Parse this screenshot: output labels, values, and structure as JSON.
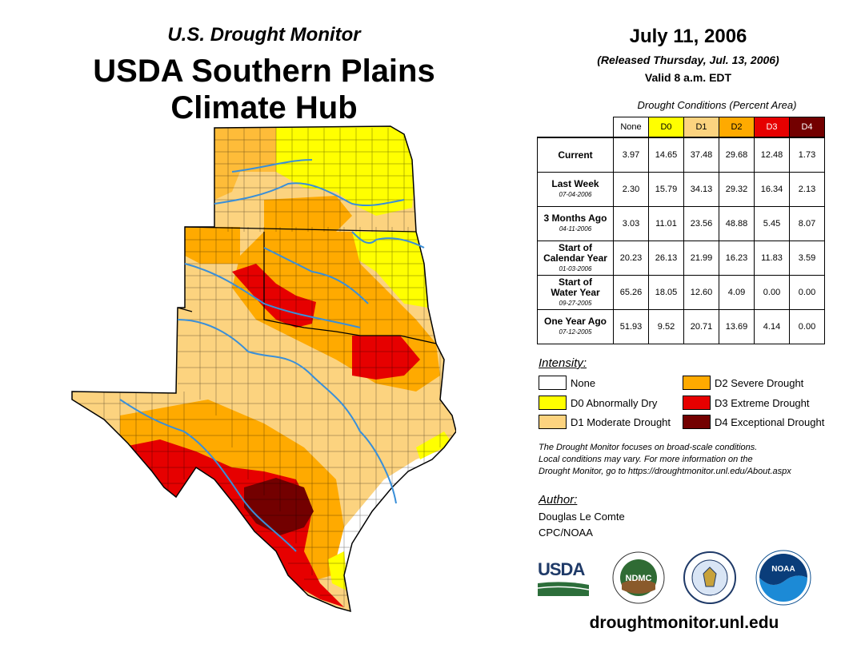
{
  "header": {
    "subtitle": "U.S. Drought Monitor",
    "title_line1": "USDA Southern Plains",
    "title_line2": "Climate Hub"
  },
  "date": {
    "main": "July 11, 2006",
    "released": "(Released Thursday, Jul. 13, 2006)",
    "valid": "Valid 8 a.m. EDT"
  },
  "conditions": {
    "caption": "Drought Conditions (Percent Area)",
    "columns": [
      "None",
      "D0",
      "D1",
      "D2",
      "D3",
      "D4"
    ],
    "rows": [
      {
        "label1": "Current",
        "label2": "",
        "date": "",
        "values": [
          "3.97",
          "14.65",
          "37.48",
          "29.68",
          "12.48",
          "1.73"
        ]
      },
      {
        "label1": "Last Week",
        "label2": "",
        "date": "07-04-2006",
        "values": [
          "2.30",
          "15.79",
          "34.13",
          "29.32",
          "16.34",
          "2.13"
        ]
      },
      {
        "label1": "3 Months Ago",
        "label2": "",
        "date": "04-11-2006",
        "values": [
          "3.03",
          "11.01",
          "23.56",
          "48.88",
          "5.45",
          "8.07"
        ]
      },
      {
        "label1": "Start of",
        "label2": "Calendar Year",
        "date": "01-03-2006",
        "values": [
          "20.23",
          "26.13",
          "21.99",
          "16.23",
          "11.83",
          "3.59"
        ]
      },
      {
        "label1": "Start of",
        "label2": "Water Year",
        "date": "09-27-2005",
        "values": [
          "65.26",
          "18.05",
          "12.60",
          "4.09",
          "0.00",
          "0.00"
        ]
      },
      {
        "label1": "One Year Ago",
        "label2": "",
        "date": "07-12-2005",
        "values": [
          "51.93",
          "9.52",
          "20.71",
          "13.69",
          "4.14",
          "0.00"
        ]
      }
    ]
  },
  "intensity": {
    "title": "Intensity:",
    "items": [
      {
        "label": "None",
        "color": "#ffffff"
      },
      {
        "label": "D0 Abnormally Dry",
        "color": "#ffff00"
      },
      {
        "label": "D1 Moderate Drought",
        "color": "#fcd37f"
      },
      {
        "label": "D2 Severe Drought",
        "color": "#ffaa00"
      },
      {
        "label": "D3 Extreme Drought",
        "color": "#e60000"
      },
      {
        "label": "D4 Exceptional Drought",
        "color": "#730000"
      }
    ]
  },
  "note": {
    "line1": "The Drought Monitor focuses on broad-scale conditions.",
    "line2": "Local conditions may vary. For more information on the",
    "line3": "Drought Monitor, go to https://droughtmonitor.unl.edu/About.aspx"
  },
  "author": {
    "title": "Author:",
    "name": "Douglas Le Comte",
    "org": "CPC/NOAA"
  },
  "logos": {
    "usda": "USDA",
    "ndmc": "NDMC",
    "noaa": "NOAA"
  },
  "footer": {
    "url": "droughtmonitor.unl.edu"
  },
  "colors": {
    "none": "#ffffff",
    "d0": "#ffff00",
    "d1": "#fcd37f",
    "d2": "#ffaa00",
    "d3": "#e60000",
    "d4": "#730000",
    "river": "#3a8fd8"
  }
}
